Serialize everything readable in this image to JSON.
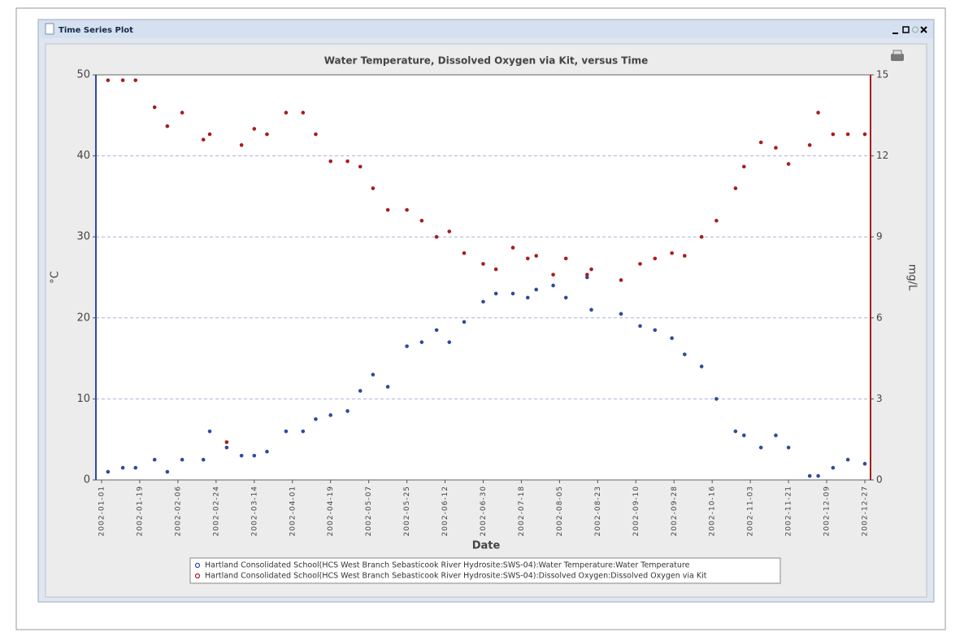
{
  "window": {
    "title": "Time Series Plot"
  },
  "chart_data": {
    "type": "scatter",
    "title": "Water Temperature, Dissolved Oxygen via Kit, versus Time",
    "x_label": "Date",
    "y_label": "°C",
    "y2_label": "mg/L",
    "x": [
      "2002-01-04",
      "2002-01-11",
      "2002-01-17",
      "2002-01-26",
      "2002-02-01",
      "2002-02-08",
      "2002-02-18",
      "2002-02-21",
      "2002-03-01",
      "2002-03-08",
      "2002-03-14",
      "2002-03-20",
      "2002-03-29",
      "2002-04-06",
      "2002-04-12",
      "2002-04-19",
      "2002-04-27",
      "2002-05-03",
      "2002-05-09",
      "2002-05-16",
      "2002-05-25",
      "2002-06-01",
      "2002-06-08",
      "2002-06-14",
      "2002-06-21",
      "2002-06-30",
      "2002-07-06",
      "2002-07-14",
      "2002-07-21",
      "2002-07-25",
      "2002-08-02",
      "2002-08-08",
      "2002-08-18",
      "2002-08-20",
      "2002-09-03",
      "2002-09-12",
      "2002-09-19",
      "2002-09-27",
      "2002-10-03",
      "2002-10-11",
      "2002-10-18",
      "2002-10-27",
      "2002-10-31",
      "2002-11-08",
      "2002-11-15",
      "2002-11-21",
      "2002-12-01",
      "2002-12-05",
      "2002-12-12",
      "2002-12-19",
      "2002-12-27"
    ],
    "xlim": [
      "2002-01-01",
      "2002-12-27"
    ],
    "xticks": [
      "2002-01-01",
      "2002-01-19",
      "2002-02-06",
      "2002-02-24",
      "2002-03-14",
      "2002-04-01",
      "2002-04-19",
      "2002-05-07",
      "2002-05-25",
      "2002-06-12",
      "2002-06-30",
      "2002-07-18",
      "2002-08-05",
      "2002-08-23",
      "2002-09-10",
      "2002-09-28",
      "2002-10-16",
      "2002-11-03",
      "2002-11-21",
      "2002-12-09",
      "2002-12-27"
    ],
    "ylim": [
      0,
      50
    ],
    "yticks": [
      0,
      10,
      20,
      30,
      40,
      50
    ],
    "y2lim": [
      0,
      15
    ],
    "y2ticks": [
      0,
      3,
      6,
      9,
      12,
      15
    ],
    "grid": true,
    "series": [
      {
        "name": "Hartland Consolidated School(HCS West Branch Sebasticook River Hydrosite:SWS-04):Water Temperature:Water Temperature",
        "color": "#2f4a9e",
        "values": [
          1,
          1.5,
          1.5,
          2.5,
          1,
          2.5,
          2.5,
          6,
          4,
          3,
          3,
          3.5,
          6,
          6,
          7.5,
          8,
          8.5,
          11,
          13,
          11.5,
          16.5,
          17,
          18.5,
          17,
          19.5,
          22,
          23,
          23,
          22.5,
          23.5,
          24,
          22.5,
          25,
          21,
          20.5,
          19,
          18.5,
          17.5,
          15.5,
          14,
          10,
          6,
          5.5,
          4,
          5.5,
          4,
          0.5,
          0.5,
          1.5,
          2.5,
          2
        ]
      },
      {
        "name": "Hartland Consolidated School(HCS West Branch Sebasticook River Hydrosite:SWS-04):Dissolved Oxygen:Dissolved Oxygen via Kit",
        "color": "#a81c1c",
        "axis": "y2",
        "values": [
          14.8,
          14.8,
          14.8,
          13.8,
          13.1,
          13.6,
          12.6,
          12.8,
          1.4,
          12.4,
          13,
          12.8,
          13.6,
          13.6,
          12.8,
          11.8,
          11.8,
          11.6,
          10.8,
          10,
          10,
          9.6,
          9,
          9.2,
          8.4,
          8,
          7.8,
          8.6,
          8.2,
          8.3,
          7.6,
          8.2,
          7.6,
          7.8,
          7.4,
          8,
          8.2,
          8.4,
          8.3,
          9,
          9.6,
          10.8,
          11.6,
          12.5,
          12.3,
          11.7,
          12.4,
          13.6,
          12.8,
          12.8,
          12.8
        ]
      }
    ]
  }
}
